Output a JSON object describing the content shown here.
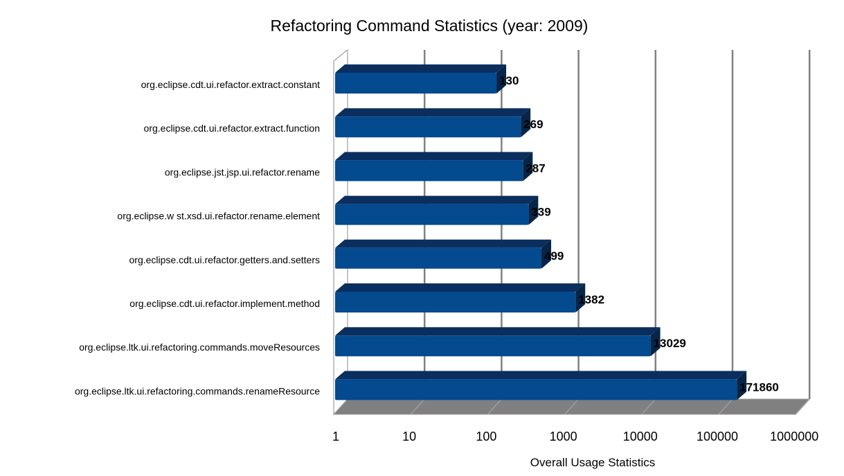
{
  "chart_data": {
    "type": "bar",
    "orientation": "horizontal",
    "style": "3d",
    "title": "Refactoring Command Statistics (year: 2009)",
    "xlabel": "Overall Usage Statistics",
    "ylabel": "",
    "x_scale": "log",
    "xlim": [
      1,
      1000000
    ],
    "x_ticks": [
      "1",
      "10",
      "100",
      "1000",
      "10000",
      "100000",
      "1000000"
    ],
    "grid": true,
    "legend": "none",
    "bar_color": "#034a8f",
    "categories": [
      "org.eclipse.cdt.ui.refactor.extract.constant",
      "org.eclipse.cdt.ui.refactor.extract.function",
      "org.eclipse.jst.jsp.ui.refactor.rename",
      "org.eclipse.w st.xsd.ui.refactor.rename.element",
      "org.eclipse.cdt.ui.refactor.getters.and.setters",
      "org.eclipse.cdt.ui.refactor.implement.method",
      "org.eclipse.ltk.ui.refactoring.commands.moveResources",
      "org.eclipse.ltk.ui.refactoring.commands.renameResource"
    ],
    "values": [
      130,
      269,
      287,
      339,
      499,
      1382,
      13029,
      171860
    ],
    "data_labels": [
      "130",
      "269",
      "287",
      "339",
      "499",
      "1382",
      "13029",
      "171860"
    ]
  }
}
